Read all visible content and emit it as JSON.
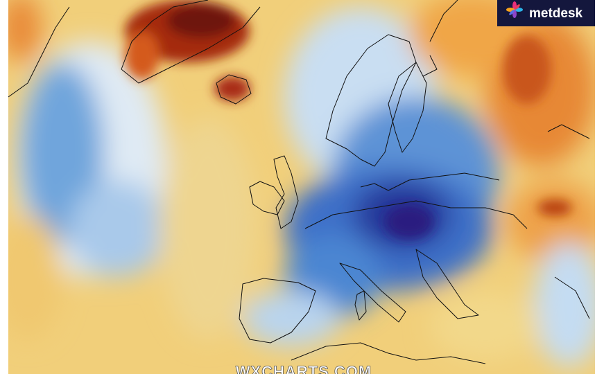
{
  "logo": {
    "text": "metdesk"
  },
  "watermark": "WXCHARTS.COM"
}
